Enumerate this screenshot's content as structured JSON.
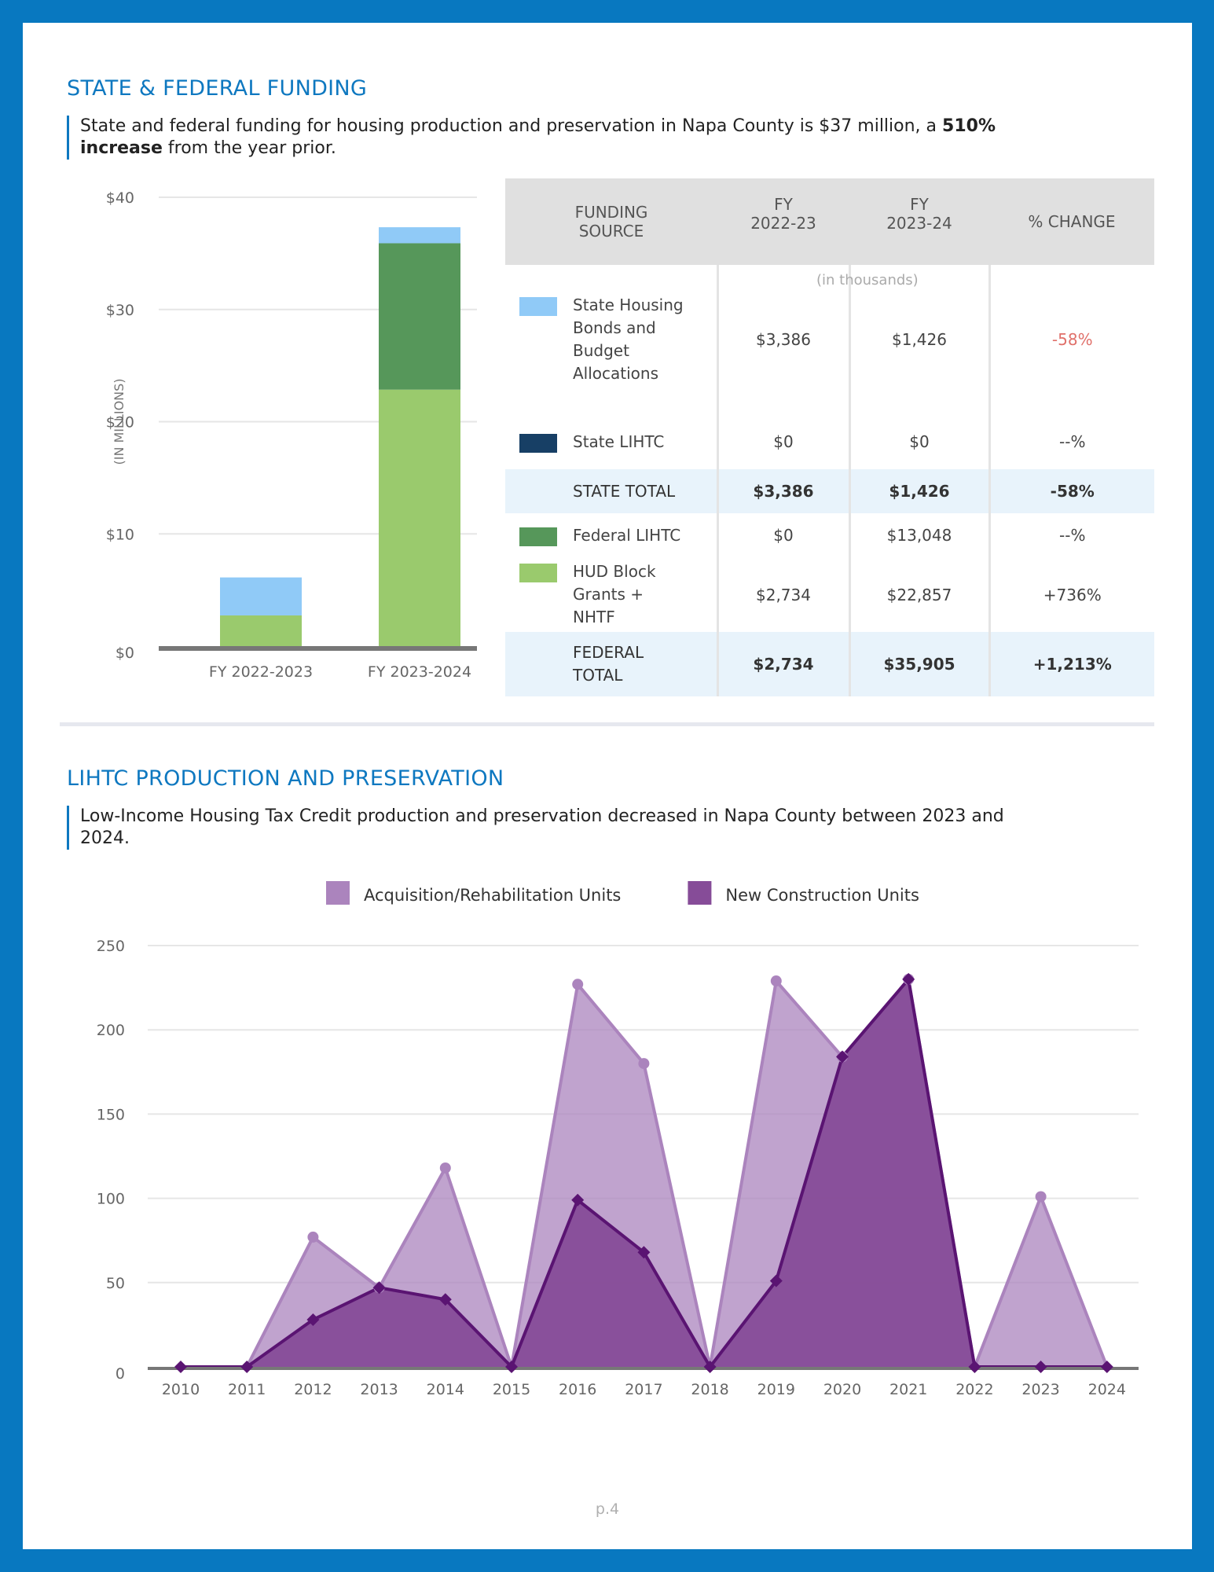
{
  "page_number": "p.4",
  "section1": {
    "title": "STATE & FEDERAL FUNDING",
    "callout_pre": "State and federal funding for housing production and preservation in Napa County is $37 million, a ",
    "callout_bold": "510% increase",
    "callout_post": " from the year prior."
  },
  "funding_table": {
    "headers": {
      "source_line1": "FUNDING",
      "source_line2": "SOURCE",
      "fy1_line1": "FY",
      "fy1_line2": "2022-23",
      "fy2_line1": "FY",
      "fy2_line2": "2023-24",
      "change": "% CHANGE",
      "units_note": "(in thousands)"
    },
    "rows": [
      {
        "label_lines": [
          "State Housing",
          "Bonds and",
          "Budget",
          "Allocations"
        ],
        "color": "#90caf7",
        "fy1": "$3,386",
        "fy2": "$1,426",
        "change": "-58%",
        "negative": true
      },
      {
        "label_lines": [
          "State LIHTC"
        ],
        "color": "#173f65",
        "fy1": "$0",
        "fy2": "$0",
        "change": "--%",
        "negative": false
      },
      {
        "label_lines": [
          "STATE TOTAL"
        ],
        "total": true,
        "fy1": "$3,386",
        "fy2": "$1,426",
        "change": "-58%",
        "negative": true
      },
      {
        "label_lines": [
          "Federal LIHTC"
        ],
        "color": "#56975a",
        "fy1": "$0",
        "fy2": "$13,048",
        "change": "--%",
        "negative": false
      },
      {
        "label_lines": [
          "HUD Block",
          "Grants +",
          "NHTF"
        ],
        "color": "#9aca6d",
        "fy1": "$2,734",
        "fy2": "$22,857",
        "change": "+736%",
        "negative": false
      },
      {
        "label_lines": [
          "FEDERAL",
          "TOTAL"
        ],
        "total": true,
        "fy1": "$2,734",
        "fy2": "$35,905",
        "change": "+1,213%",
        "negative": false
      }
    ]
  },
  "section2": {
    "title": "LIHTC PRODUCTION AND PRESERVATION",
    "callout": "Low-Income Housing Tax Credit production and preservation decreased in Napa County between 2023 and 2024."
  },
  "chart_data": [
    {
      "type": "bar",
      "stacked": true,
      "title": "",
      "xlabel": "",
      "ylabel": "(IN MILLIONS)",
      "ylim": [
        0,
        40
      ],
      "yticks": [
        0,
        10,
        20,
        30,
        40
      ],
      "ytick_labels": [
        "$0",
        "$10",
        "$20",
        "$30",
        "$40"
      ],
      "grid": true,
      "categories": [
        "FY 2022-2023",
        "FY 2023-2024"
      ],
      "series": [
        {
          "name": "HUD Block Grants + NHTF",
          "color": "#9aca6d",
          "values": [
            2.734,
            22.857
          ]
        },
        {
          "name": "Federal LIHTC",
          "color": "#56975a",
          "values": [
            0,
            13.048
          ]
        },
        {
          "name": "State LIHTC",
          "color": "#173f65",
          "values": [
            0,
            0
          ]
        },
        {
          "name": "State Housing Bonds and Budget Allocations",
          "color": "#90caf7",
          "values": [
            3.386,
            1.426
          ]
        }
      ]
    },
    {
      "type": "area",
      "title": "",
      "xlabel": "",
      "ylabel": "",
      "ylim": [
        0,
        250
      ],
      "yticks": [
        0,
        50,
        100,
        150,
        200,
        250
      ],
      "grid": true,
      "legend": "top-center",
      "x": [
        "2010",
        "2011",
        "2012",
        "2013",
        "2014",
        "2015",
        "2016",
        "2017",
        "2018",
        "2019",
        "2020",
        "2021",
        "2022",
        "2023",
        "2024"
      ],
      "series": [
        {
          "name": "Acquisition/Rehabilitation Units",
          "color": "#ab84bd",
          "marker": "circle",
          "values": [
            0,
            0,
            77,
            47,
            118,
            0,
            227,
            180,
            0,
            229,
            184,
            230,
            0,
            101,
            0
          ]
        },
        {
          "name": "New Construction Units",
          "color": "#864c98",
          "line_color": "#5a1472",
          "marker": "diamond",
          "values": [
            0,
            0,
            28,
            47,
            40,
            0,
            99,
            68,
            0,
            51,
            184,
            230,
            0,
            0,
            0
          ]
        }
      ]
    }
  ]
}
